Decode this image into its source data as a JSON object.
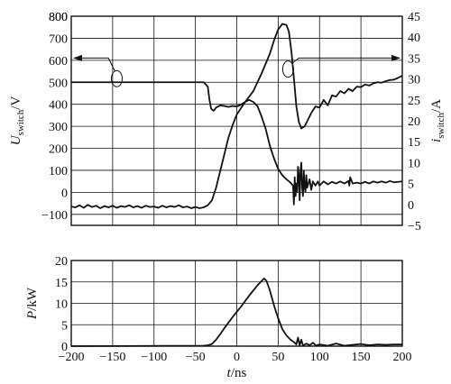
{
  "chart_data": [
    {
      "type": "line",
      "panel": "top",
      "xlim": [
        -200,
        200
      ],
      "ylim_left": [
        -150,
        800
      ],
      "ylim_right": [
        -5,
        45
      ],
      "x_ticks": [
        -200,
        -150,
        -100,
        -50,
        0,
        50,
        100,
        150,
        200
      ],
      "y_left_ticks": [
        -100,
        0,
        100,
        200,
        300,
        400,
        500,
        600,
        700,
        800
      ],
      "y_right_ticks": [
        -5,
        0,
        5,
        10,
        15,
        20,
        25,
        30,
        35,
        40,
        45
      ],
      "ylabel_left": {
        "symbol": "U",
        "subscript": "switch",
        "unit": "/V"
      },
      "ylabel_right": {
        "symbol": "i",
        "subscript": "switch",
        "unit": "/A"
      },
      "grid": true,
      "series": [
        {
          "axis": "left",
          "points": [
            [
              -200,
              500
            ],
            [
              -40,
              500
            ],
            [
              -35,
              480
            ],
            [
              -33,
              420
            ],
            [
              -31,
              380
            ],
            [
              -28,
              370
            ],
            [
              -25,
              385
            ],
            [
              -20,
              395
            ],
            [
              -15,
              392
            ],
            [
              -10,
              388
            ],
            [
              -5,
              392
            ],
            [
              0,
              390
            ],
            [
              5,
              398
            ],
            [
              10,
              410
            ],
            [
              20,
              460
            ],
            [
              30,
              540
            ],
            [
              40,
              630
            ],
            [
              45,
              690
            ],
            [
              50,
              740
            ],
            [
              55,
              765
            ],
            [
              60,
              760
            ],
            [
              63,
              730
            ],
            [
              66,
              640
            ],
            [
              69,
              520
            ],
            [
              72,
              390
            ],
            [
              75,
              320
            ],
            [
              78,
              290
            ],
            [
              82,
              300
            ],
            [
              86,
              330
            ],
            [
              90,
              360
            ],
            [
              95,
              390
            ],
            [
              100,
              385
            ],
            [
              105,
              420
            ],
            [
              110,
              395
            ],
            [
              115,
              440
            ],
            [
              120,
              435
            ],
            [
              125,
              460
            ],
            [
              130,
              450
            ],
            [
              135,
              470
            ],
            [
              140,
              460
            ],
            [
              145,
              480
            ],
            [
              150,
              478
            ],
            [
              155,
              490
            ],
            [
              160,
              485
            ],
            [
              165,
              495
            ],
            [
              170,
              500
            ],
            [
              175,
              498
            ],
            [
              180,
              505
            ],
            [
              185,
              510
            ],
            [
              190,
              512
            ],
            [
              195,
              520
            ],
            [
              200,
              530
            ]
          ]
        },
        {
          "axis": "right",
          "points": [
            [
              -200,
              -0.5
            ],
            [
              -195,
              -0.7
            ],
            [
              -190,
              -0.2
            ],
            [
              -185,
              -0.8
            ],
            [
              -180,
              -0.1
            ],
            [
              -175,
              -0.6
            ],
            [
              -170,
              -0.3
            ],
            [
              -165,
              -0.9
            ],
            [
              -160,
              -0.4
            ],
            [
              -155,
              -0.7
            ],
            [
              -150,
              -0.3
            ],
            [
              -145,
              -0.8
            ],
            [
              -140,
              -0.4
            ],
            [
              -135,
              -0.6
            ],
            [
              -130,
              -0.2
            ],
            [
              -125,
              -0.7
            ],
            [
              -120,
              -0.4
            ],
            [
              -115,
              -0.8
            ],
            [
              -110,
              -0.3
            ],
            [
              -105,
              -0.6
            ],
            [
              -100,
              -0.5
            ],
            [
              -95,
              -0.8
            ],
            [
              -90,
              -0.3
            ],
            [
              -85,
              -0.7
            ],
            [
              -80,
              -0.4
            ],
            [
              -75,
              -0.6
            ],
            [
              -70,
              -0.2
            ],
            [
              -65,
              -0.7
            ],
            [
              -60,
              -0.5
            ],
            [
              -55,
              -0.9
            ],
            [
              -50,
              -0.6
            ],
            [
              -45,
              -0.9
            ],
            [
              -40,
              -0.7
            ],
            [
              -35,
              -0.2
            ],
            [
              -30,
              1
            ],
            [
              -25,
              4
            ],
            [
              -20,
              8
            ],
            [
              -15,
              12
            ],
            [
              -10,
              16
            ],
            [
              -5,
              19
            ],
            [
              0,
              21.5
            ],
            [
              5,
              23
            ],
            [
              10,
              24.5
            ],
            [
              15,
              25
            ],
            [
              20,
              24.5
            ],
            [
              25,
              23.5
            ],
            [
              30,
              21
            ],
            [
              35,
              18
            ],
            [
              40,
              14
            ],
            [
              45,
              11
            ],
            [
              50,
              8.5
            ],
            [
              55,
              7
            ],
            [
              60,
              6
            ],
            [
              65,
              5.2
            ],
            [
              68,
              4.5
            ],
            [
              69,
              0
            ],
            [
              70,
              6.5
            ],
            [
              71,
              2
            ],
            [
              72,
              5
            ],
            [
              73,
              3
            ],
            [
              74,
              9
            ],
            [
              75,
              7
            ],
            [
              76,
              1
            ],
            [
              77,
              8
            ],
            [
              78,
              10
            ],
            [
              79,
              4
            ],
            [
              80,
              2
            ],
            [
              81,
              8
            ],
            [
              82,
              4
            ],
            [
              83,
              3
            ],
            [
              84,
              7
            ],
            [
              85,
              4
            ],
            [
              88,
              6
            ],
            [
              90,
              3.5
            ],
            [
              92,
              5.5
            ],
            [
              95,
              4.5
            ],
            [
              98,
              5.5
            ],
            [
              100,
              4.5
            ],
            [
              105,
              5.5
            ],
            [
              110,
              4.8
            ],
            [
              115,
              5.4
            ],
            [
              120,
              5
            ],
            [
              125,
              5.5
            ],
            [
              130,
              5
            ],
            [
              135,
              5.6
            ],
            [
              136,
              4.5
            ],
            [
              137,
              6.5
            ],
            [
              140,
              5
            ],
            [
              145,
              5.2
            ],
            [
              150,
              5
            ],
            [
              155,
              5.4
            ],
            [
              160,
              5
            ],
            [
              165,
              5.5
            ],
            [
              170,
              5.2
            ],
            [
              175,
              5.5
            ],
            [
              180,
              5.2
            ],
            [
              185,
              5.6
            ],
            [
              190,
              5.3
            ],
            [
              200,
              5.5
            ]
          ]
        }
      ]
    },
    {
      "type": "line",
      "panel": "bottom",
      "xlim": [
        -200,
        200
      ],
      "ylim": [
        0,
        20
      ],
      "x_ticks": [
        -200,
        -150,
        -100,
        -50,
        0,
        50,
        100,
        150,
        200
      ],
      "y_ticks": [
        0,
        5,
        10,
        15,
        20
      ],
      "ylabel": {
        "symbol": "P",
        "unit": "/kW"
      },
      "xlabel": {
        "symbol": "t",
        "unit": "/ns"
      },
      "grid": true,
      "series": [
        {
          "points": [
            [
              -200,
              0
            ],
            [
              -40,
              0.1
            ],
            [
              -35,
              0.2
            ],
            [
              -30,
              0.5
            ],
            [
              -25,
              1.5
            ],
            [
              -20,
              2.8
            ],
            [
              -15,
              4.2
            ],
            [
              -10,
              5.5
            ],
            [
              -5,
              6.8
            ],
            [
              0,
              8
            ],
            [
              5,
              9.2
            ],
            [
              10,
              10.5
            ],
            [
              15,
              11.8
            ],
            [
              20,
              13
            ],
            [
              25,
              14.2
            ],
            [
              30,
              15.2
            ],
            [
              33,
              15.8
            ],
            [
              36,
              15.2
            ],
            [
              40,
              13
            ],
            [
              45,
              9.5
            ],
            [
              50,
              6.5
            ],
            [
              55,
              4
            ],
            [
              60,
              2.5
            ],
            [
              65,
              1.5
            ],
            [
              70,
              0.8
            ],
            [
              72,
              0.4
            ],
            [
              74,
              2
            ],
            [
              76,
              0.2
            ],
            [
              78,
              1.5
            ],
            [
              80,
              0.1
            ],
            [
              84,
              0.6
            ],
            [
              88,
              0.2
            ],
            [
              92,
              0.8
            ],
            [
              96,
              0.1
            ],
            [
              100,
              0.4
            ],
            [
              110,
              0.1
            ],
            [
              120,
              0.6
            ],
            [
              130,
              0.1
            ],
            [
              140,
              0.3
            ],
            [
              150,
              0.5
            ],
            [
              160,
              0.2
            ],
            [
              170,
              0.4
            ],
            [
              180,
              0.3
            ],
            [
              190,
              0.4
            ],
            [
              200,
              0.4
            ]
          ]
        }
      ]
    }
  ]
}
